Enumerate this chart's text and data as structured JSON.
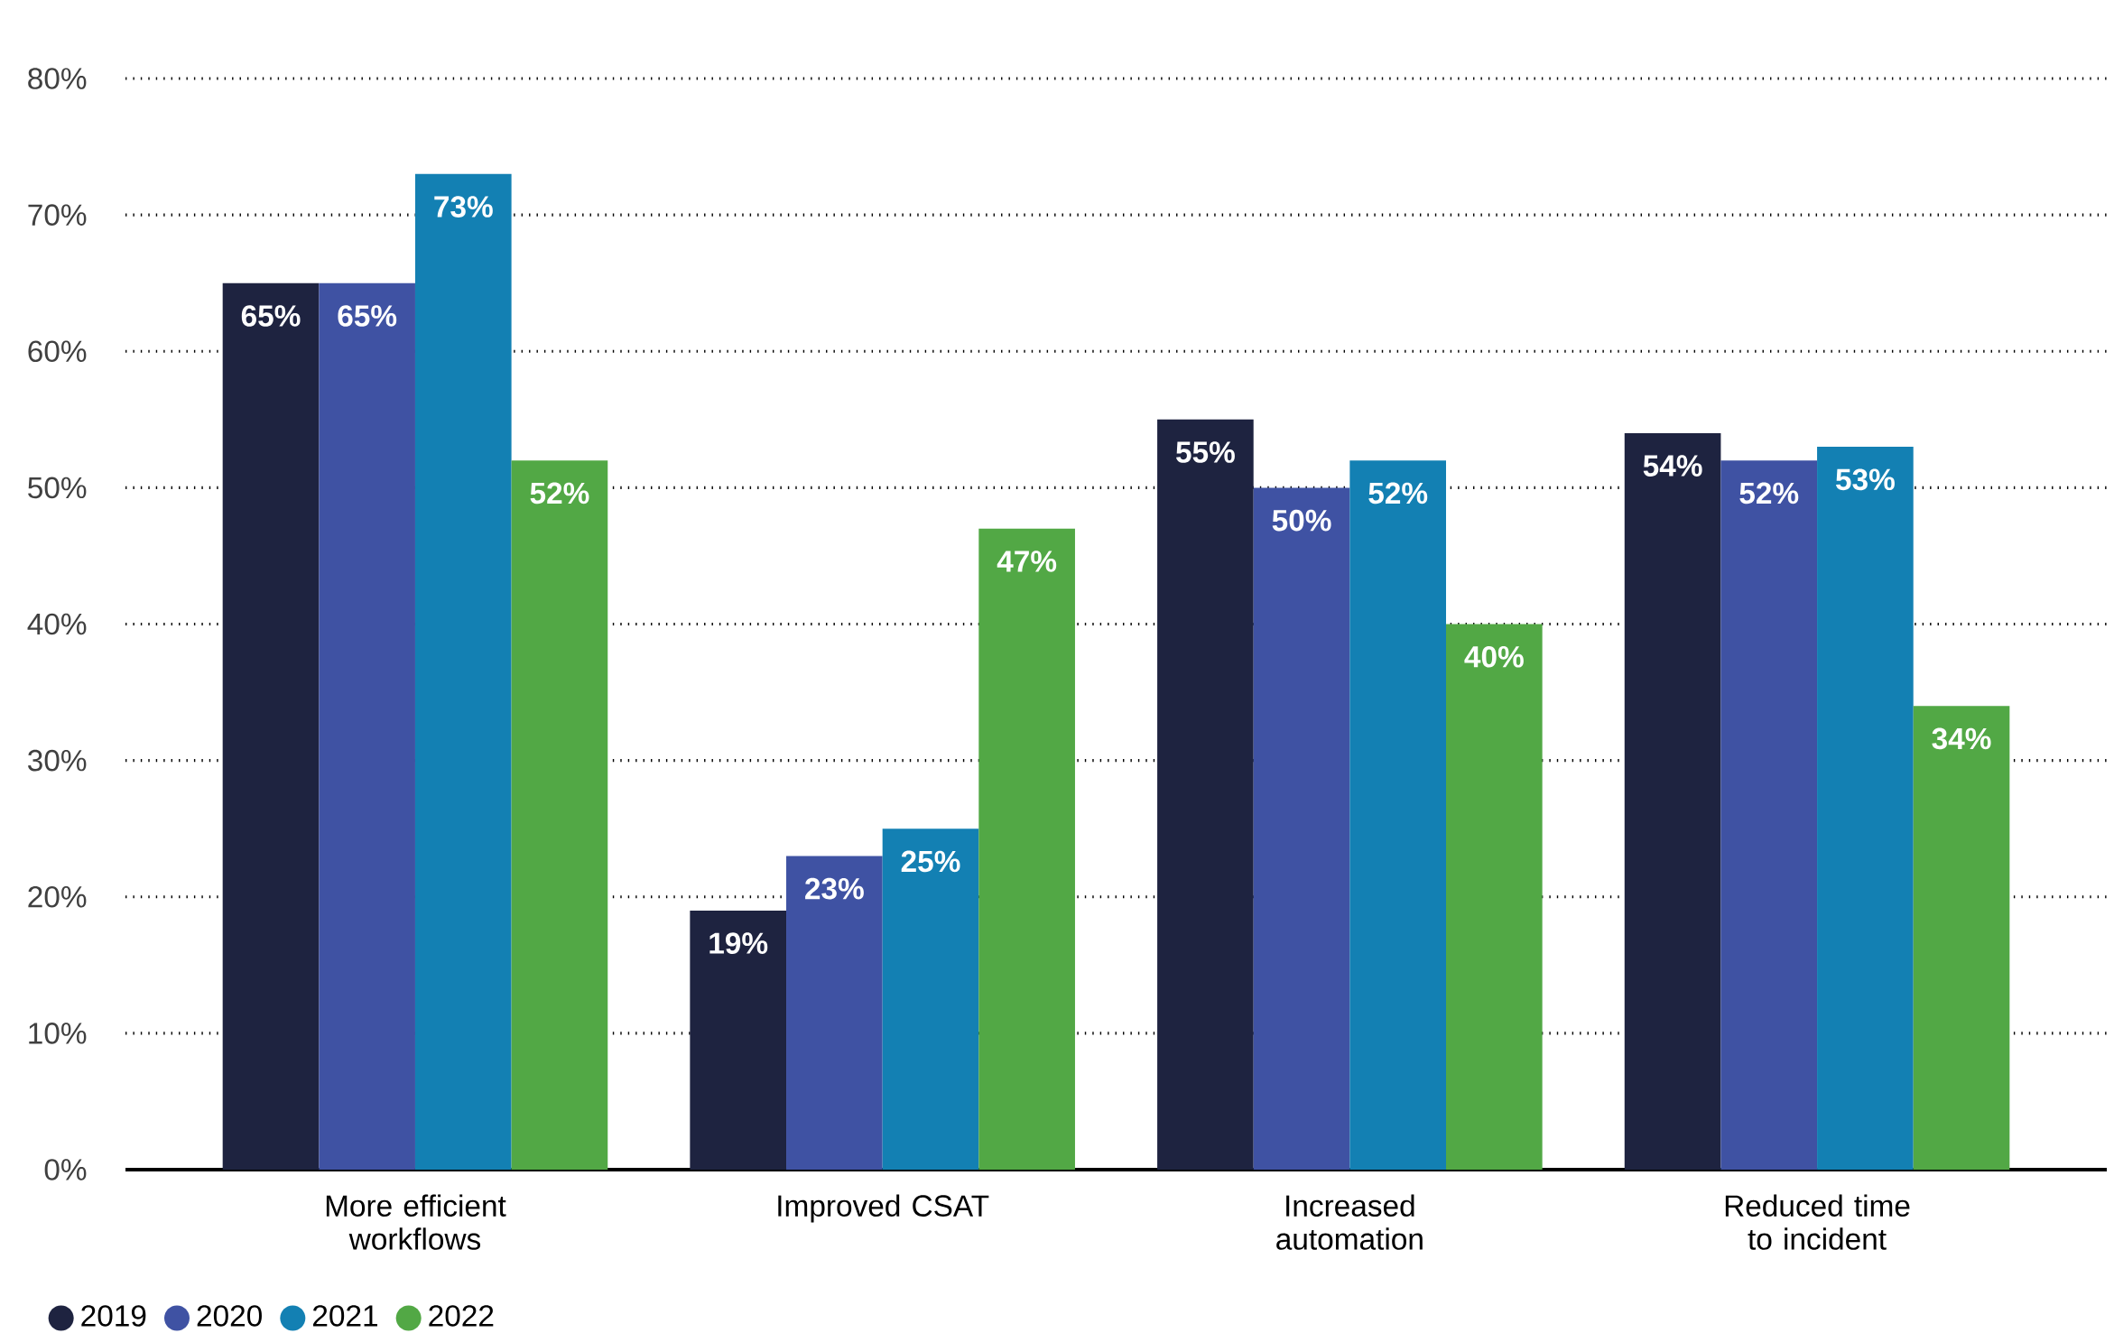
{
  "chart_data": {
    "type": "bar",
    "categories": [
      "More efficient workflows",
      "Improved CSAT",
      "Increased automation",
      "Reduced time to incident"
    ],
    "series": [
      {
        "name": "2019",
        "color": "#1e2340",
        "values": [
          65,
          19,
          55,
          54
        ],
        "value_labels": [
          "65%",
          "19%",
          "55%",
          "54%"
        ]
      },
      {
        "name": "2020",
        "color": "#3f52a3",
        "values": [
          65,
          23,
          50,
          52
        ],
        "value_labels": [
          "65%",
          "23%",
          "50%",
          "52%"
        ]
      },
      {
        "name": "2021",
        "color": "#1380b3",
        "values": [
          73,
          25,
          52,
          53
        ],
        "value_labels": [
          "73%",
          "25%",
          "52%",
          "53%"
        ]
      },
      {
        "name": "2022",
        "color": "#52a845",
        "values": [
          52,
          47,
          40,
          34
        ],
        "value_labels": [
          "52%",
          "47%",
          "40%",
          "34%"
        ]
      }
    ],
    "ylim": [
      0,
      80
    ],
    "yticks": [
      {
        "value": 0,
        "label": "0%"
      },
      {
        "value": 10,
        "label": "10%"
      },
      {
        "value": 20,
        "label": "20%"
      },
      {
        "value": 30,
        "label": "30%"
      },
      {
        "value": 40,
        "label": "40%"
      },
      {
        "value": 50,
        "label": "50%"
      },
      {
        "value": 60,
        "label": "60%"
      },
      {
        "value": 70,
        "label": "70%"
      },
      {
        "value": 80,
        "label": "80%"
      }
    ],
    "grid": "y",
    "legend": "bottom left"
  }
}
